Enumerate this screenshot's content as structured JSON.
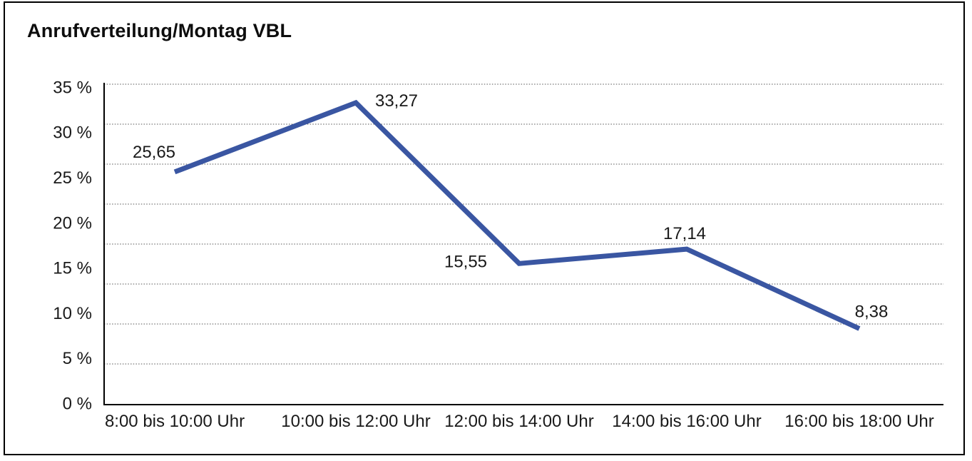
{
  "title": "Anrufverteilung/Montag VBL",
  "chart_data": {
    "type": "line",
    "title": "Anrufverteilung/Montag VBL",
    "categories": [
      "8:00 bis 10:00 Uhr",
      "10:00 bis 12:00 Uhr",
      "12:00 bis 14:00 Uhr",
      "14:00 bis 16:00 Uhr",
      "16:00 bis 18:00 Uhr"
    ],
    "values": [
      25.65,
      33.27,
      15.55,
      17.14,
      8.38
    ],
    "value_labels": [
      "25,65",
      "33,27",
      "15,55",
      "17,14",
      "8,38"
    ],
    "ytick_labels": [
      "35 %",
      "30 %",
      "25 %",
      "20 %",
      "15 %",
      "10 %",
      "5 %",
      "0 %"
    ],
    "ylim": [
      0,
      35
    ],
    "xlabel": "",
    "ylabel": "",
    "grid": "horizontal-dotted",
    "legend": "none"
  },
  "colors": {
    "line": "#3A56A2",
    "text": "#1A1A1A",
    "grid": "#555555",
    "axis": "#000000",
    "frame": "#000000",
    "background": "#FFFFFF"
  }
}
